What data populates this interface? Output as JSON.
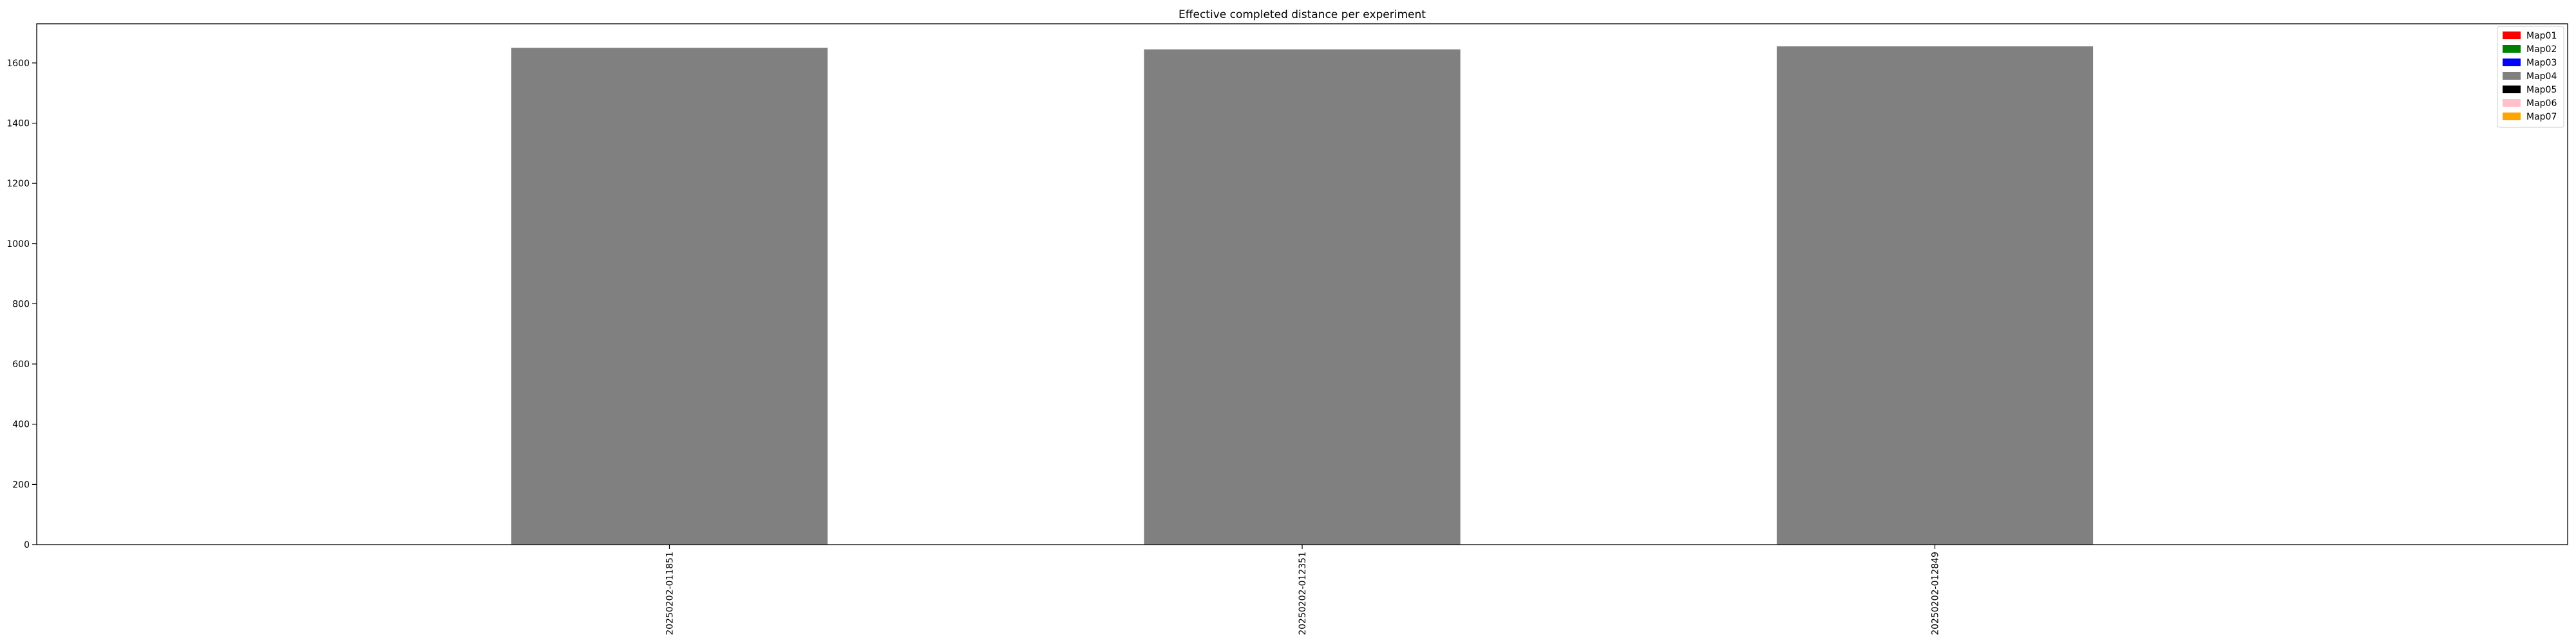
{
  "chart_data": {
    "type": "bar",
    "title": "Effective completed distance per experiment",
    "xlabel": "",
    "ylabel": "",
    "categories": [
      "20250202-011851",
      "20250202-012351",
      "20250202-012849"
    ],
    "series": [
      {
        "name": "Map04",
        "color": "#808080",
        "values": [
          1650,
          1645,
          1655
        ]
      }
    ],
    "ylim": [
      0,
      1730
    ],
    "yticks": [
      0,
      200,
      400,
      600,
      800,
      1000,
      1200,
      1400,
      1600
    ],
    "grid": false,
    "legend": {
      "placement": "top-right",
      "entries": [
        {
          "name": "Map01",
          "color": "#ff0000"
        },
        {
          "name": "Map02",
          "color": "#008000"
        },
        {
          "name": "Map03",
          "color": "#0000ff"
        },
        {
          "name": "Map04",
          "color": "#808080"
        },
        {
          "name": "Map05",
          "color": "#000000"
        },
        {
          "name": "Map06",
          "color": "#ffc0cb"
        },
        {
          "name": "Map07",
          "color": "#ffa500"
        }
      ]
    }
  }
}
